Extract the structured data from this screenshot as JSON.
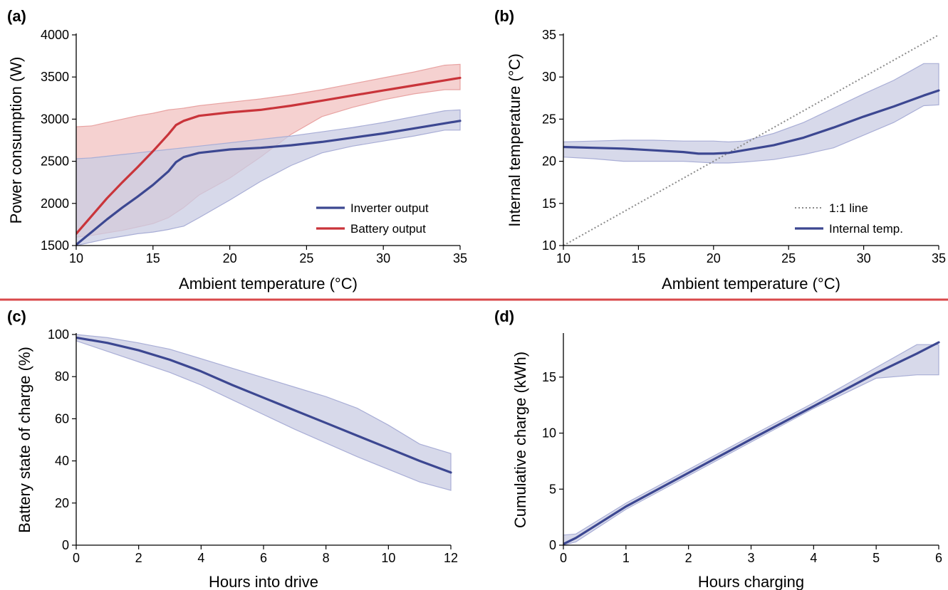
{
  "colors": {
    "blue": "#3c4791",
    "blue_band": "#c9cce3",
    "red": "#c9343a",
    "red_band": "#f2c2c0",
    "divider": "#d9484a",
    "gray_dotted": "#8a8a8a"
  },
  "chart_data": [
    {
      "id": "a",
      "type": "line",
      "panel_label": "(a)",
      "xlabel": "Ambient temperature (°C)",
      "ylabel": "Power consumption (W)",
      "xlim": [
        10,
        35
      ],
      "ylim": [
        1500,
        4000
      ],
      "xticks": [
        10,
        15,
        20,
        25,
        30,
        35
      ],
      "yticks": [
        1500,
        2000,
        2500,
        3000,
        3500,
        4000
      ],
      "legend_position": "lower-right",
      "series": [
        {
          "name": "Battery output",
          "color": "red",
          "x": [
            10,
            11,
            12,
            13,
            14,
            15,
            16,
            16.5,
            17,
            18,
            20,
            22,
            24,
            26,
            28,
            30,
            32,
            34,
            35
          ],
          "y": [
            1640,
            1850,
            2060,
            2250,
            2430,
            2620,
            2820,
            2930,
            2980,
            3040,
            3080,
            3110,
            3160,
            3220,
            3280,
            3340,
            3400,
            3460,
            3490
          ],
          "lower": [
            1600,
            1620,
            1650,
            1680,
            1720,
            1760,
            1830,
            1890,
            1950,
            2100,
            2300,
            2550,
            2820,
            3030,
            3140,
            3230,
            3300,
            3350,
            3350
          ],
          "upper": [
            2910,
            2920,
            2960,
            3000,
            3040,
            3070,
            3110,
            3120,
            3130,
            3160,
            3200,
            3240,
            3290,
            3350,
            3420,
            3490,
            3560,
            3640,
            3650
          ]
        },
        {
          "name": "Inverter output",
          "color": "blue",
          "x": [
            10,
            11,
            12,
            13,
            14,
            15,
            16,
            16.5,
            17,
            18,
            20,
            22,
            24,
            26,
            28,
            30,
            32,
            34,
            35
          ],
          "y": [
            1510,
            1660,
            1810,
            1950,
            2080,
            2220,
            2380,
            2490,
            2550,
            2600,
            2640,
            2660,
            2690,
            2730,
            2780,
            2830,
            2890,
            2950,
            2980
          ],
          "lower": [
            1500,
            1540,
            1580,
            1610,
            1640,
            1660,
            1690,
            1710,
            1730,
            1830,
            2040,
            2260,
            2450,
            2600,
            2680,
            2740,
            2800,
            2870,
            2870
          ],
          "upper": [
            2530,
            2540,
            2560,
            2580,
            2600,
            2620,
            2640,
            2650,
            2660,
            2680,
            2720,
            2760,
            2800,
            2850,
            2900,
            2960,
            3030,
            3100,
            3110
          ]
        }
      ]
    },
    {
      "id": "b",
      "type": "line",
      "panel_label": "(b)",
      "xlabel": "Ambient temperature (°C)",
      "ylabel": "Internal temperature (°C)",
      "xlim": [
        10,
        35
      ],
      "ylim": [
        10,
        35
      ],
      "xticks": [
        10,
        15,
        20,
        25,
        30,
        35
      ],
      "yticks": [
        10,
        15,
        20,
        25,
        30,
        35
      ],
      "legend_position": "lower-right",
      "series": [
        {
          "name": "1:1 line",
          "color": "gray_dotted",
          "style": "dotted",
          "x": [
            10,
            35
          ],
          "y": [
            10,
            35
          ]
        },
        {
          "name": "Internal temp.",
          "color": "blue",
          "x": [
            10,
            12,
            14,
            16,
            18,
            19,
            20,
            21,
            22,
            24,
            26,
            28,
            30,
            32,
            34,
            35
          ],
          "y": [
            21.7,
            21.6,
            21.5,
            21.3,
            21.1,
            20.9,
            20.9,
            21.0,
            21.3,
            21.9,
            22.8,
            24.0,
            25.3,
            26.5,
            27.8,
            28.4
          ],
          "lower": [
            20.5,
            20.3,
            20.0,
            20.0,
            20.0,
            19.9,
            19.8,
            19.8,
            19.9,
            20.2,
            20.8,
            21.6,
            23.1,
            24.6,
            26.6,
            26.7
          ],
          "upper": [
            22.3,
            22.4,
            22.5,
            22.5,
            22.4,
            22.4,
            22.4,
            22.3,
            22.4,
            23.3,
            24.6,
            26.3,
            28.0,
            29.6,
            31.6,
            31.6
          ]
        }
      ]
    },
    {
      "id": "c",
      "type": "line",
      "panel_label": "(c)",
      "xlabel": "Hours into drive",
      "ylabel": "Battery state of charge (%)",
      "xlim": [
        0,
        12
      ],
      "ylim": [
        0,
        100
      ],
      "xticks": [
        0,
        2,
        4,
        6,
        8,
        10,
        12
      ],
      "yticks": [
        0,
        20,
        40,
        60,
        80,
        100
      ],
      "series": [
        {
          "name": "",
          "color": "blue",
          "x": [
            0,
            1,
            2,
            3,
            4,
            5,
            6,
            7,
            8,
            9,
            10,
            11,
            12
          ],
          "y": [
            98.5,
            96,
            92.5,
            88,
            82.5,
            76,
            70,
            64,
            58,
            52,
            46,
            40,
            34.5
          ],
          "lower": [
            97,
            92,
            87,
            82,
            76,
            69,
            62,
            55,
            48.5,
            42,
            36,
            30,
            26
          ],
          "upper": [
            100,
            98.5,
            96,
            93,
            88.5,
            84,
            79.5,
            75,
            70.5,
            65,
            57,
            48,
            43.5
          ]
        }
      ]
    },
    {
      "id": "d",
      "type": "line",
      "panel_label": "(d)",
      "xlabel": "Hours charging",
      "ylabel": "Cumulative charge (kWh)",
      "xlim": [
        0,
        6
      ],
      "ylim": [
        0,
        18.8
      ],
      "xticks": [
        0,
        1,
        2,
        3,
        4,
        5,
        6
      ],
      "yticks": [
        0,
        5,
        10,
        15
      ],
      "series": [
        {
          "name": "",
          "color": "blue",
          "x": [
            0,
            0.2,
            1,
            2,
            3,
            4,
            5,
            5.65,
            6
          ],
          "y": [
            0.1,
            0.65,
            3.45,
            6.45,
            9.45,
            12.4,
            15.35,
            17.1,
            18.1
          ],
          "lower": [
            0,
            0.3,
            3.2,
            6.2,
            9.2,
            12.2,
            14.9,
            15.2,
            15.2
          ],
          "upper": [
            0.9,
            1.0,
            3.75,
            6.75,
            9.75,
            12.7,
            15.85,
            17.9,
            17.9
          ]
        }
      ]
    }
  ]
}
